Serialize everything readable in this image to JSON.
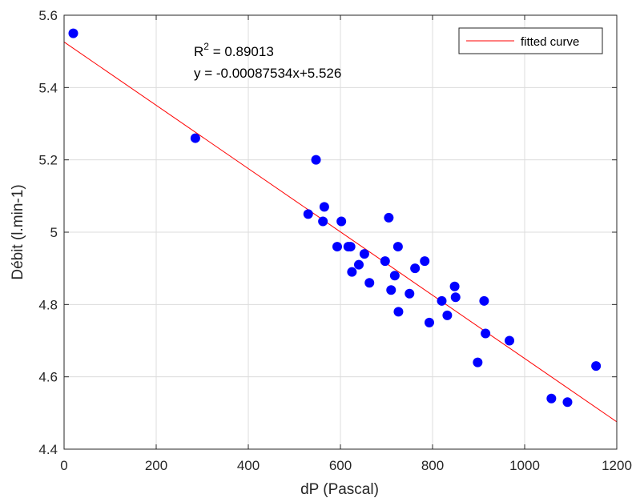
{
  "chart_data": {
    "type": "scatter",
    "xlabel": "dP (Pascal)",
    "ylabel": "Débit (l.min-1)",
    "xlim": [
      0,
      1200
    ],
    "ylim": [
      4.4,
      5.6
    ],
    "xticks": [
      0,
      200,
      400,
      600,
      800,
      1000,
      1200
    ],
    "yticks": [
      4.4,
      4.6,
      4.8,
      5,
      5.2,
      5.4,
      5.6
    ],
    "xtick_labels": [
      "0",
      "200",
      "400",
      "600",
      "800",
      "1000",
      "1200"
    ],
    "ytick_labels": [
      "4.4",
      "4.6",
      "4.8",
      "5",
      "5.2",
      "5.4",
      "5.6"
    ],
    "grid": true,
    "legend_position": "top-right",
    "point_color": "#0000ff",
    "fit_color": "#ff0000",
    "series": [
      {
        "type": "scatter",
        "x": [
          20,
          285,
          530,
          547,
          562,
          565,
          593,
          602,
          617,
          622,
          625,
          640,
          652,
          663,
          697,
          705,
          710,
          718,
          725,
          726,
          750,
          762,
          783,
          793,
          820,
          832,
          848,
          850,
          898,
          912,
          915,
          967,
          1058,
          1093,
          1155
        ],
        "y": [
          5.55,
          5.26,
          5.05,
          5.2,
          5.03,
          5.07,
          4.96,
          5.03,
          4.96,
          4.96,
          4.89,
          4.91,
          4.94,
          4.86,
          4.92,
          5.04,
          4.84,
          4.88,
          4.96,
          4.78,
          4.83,
          4.9,
          4.92,
          4.75,
          4.81,
          4.77,
          4.85,
          4.82,
          4.64,
          4.81,
          4.72,
          4.7,
          4.54,
          4.53,
          4.63
        ]
      },
      {
        "name": "fitted curve",
        "type": "line",
        "slope": -0.00087534,
        "intercept": 5.526,
        "x": [
          0,
          1200
        ]
      }
    ],
    "annotations": {
      "r2_label": "R",
      "r2_sup": "2",
      "r2_value": " = 0.89013",
      "equation": "y = -0.00087534x+5.526"
    }
  }
}
